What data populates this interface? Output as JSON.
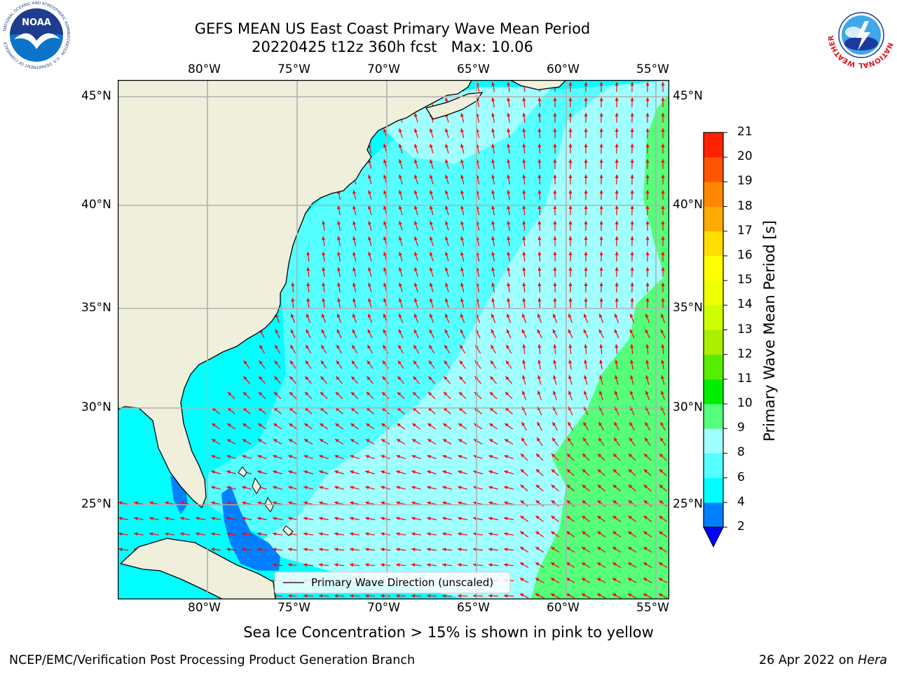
{
  "title": {
    "line1": "GEFS MEAN US East Coast Primary Wave Mean Period",
    "line2": "20220425 t12z 360h fcst   Max: 10.06"
  },
  "logos": {
    "noara_text": "NOAA",
    "noaa_ring_text": "NATIONAL OCEANIC AND ATMOSPHERIC ADMINISTRATION · U.S. DEPARTMENT OF COMMERCE",
    "nws_ring_text": "NATIONAL WEATHER SERVICE"
  },
  "map": {
    "lon_labels": [
      "80°W",
      "75°W",
      "70°W",
      "65°W",
      "60°W",
      "55°W"
    ],
    "lat_labels": [
      "45°N",
      "40°N",
      "35°N",
      "30°N",
      "25°N"
    ],
    "lon_range": [
      -85,
      -54.3
    ],
    "lat_range": [
      20.5,
      46
    ],
    "legend_label": "Primary Wave Direction (unscaled)",
    "colors": {
      "land": "#efefdc",
      "ocean_4_6": "#00ffff",
      "ocean_6_8": "#55ffff",
      "ocean_8_9": "#a0ffff",
      "ocean_9_10": "#55ff7b",
      "ocean_2_4": "#0080ff",
      "arrow": "#ff0000",
      "grid": "#b0b0b0"
    }
  },
  "colorbar": {
    "label": "Primary Wave Mean Period [s]",
    "ticks": [
      "2",
      "4",
      "6",
      "8",
      "9",
      "10",
      "11",
      "12",
      "13",
      "14",
      "15",
      "16",
      "17",
      "18",
      "19",
      "20",
      "21"
    ],
    "colors": [
      "#0080ff",
      "#00ffff",
      "#55ffff",
      "#a0ffff",
      "#55ff7b",
      "#00ee00",
      "#55ee00",
      "#aaee00",
      "#ccff00",
      "#eeff00",
      "#ffff00",
      "#ffdd00",
      "#ffaa00",
      "#ff8800",
      "#ff5500",
      "#ff2200"
    ],
    "under_color": "#0000ff"
  },
  "caption": "Sea Ice Concentration > 15% is shown in pink to yellow",
  "footer": {
    "left": "NCEP/EMC/Verification Post Processing Product Generation Branch",
    "right_date": "26 Apr 2022 on",
    "right_host": "Hera"
  }
}
